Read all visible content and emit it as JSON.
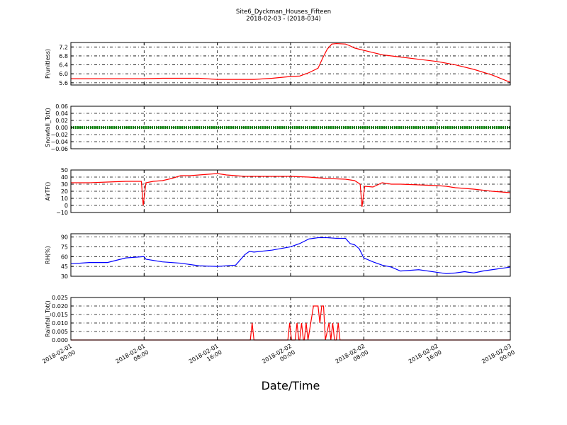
{
  "chart_data": {
    "type": "line",
    "title": "Site6_Dyckman_Houses_Fifteen",
    "subtitle": "2018-02-03 - (2018-034)",
    "xlabel": "Date/Time",
    "x_ticks": [
      {
        "hour": 0,
        "line1": "2018-02-01",
        "line2": "00:00"
      },
      {
        "hour": 8,
        "line1": "2018-02-01",
        "line2": "08:00"
      },
      {
        "hour": 16,
        "line1": "2018-02-01",
        "line2": "16:00"
      },
      {
        "hour": 24,
        "line1": "2018-02-02",
        "line2": "00:00"
      },
      {
        "hour": 32,
        "line1": "2018-02-02",
        "line2": "08:00"
      },
      {
        "hour": 40,
        "line1": "2018-02-02",
        "line2": "16:00"
      },
      {
        "hour": 48,
        "line1": "2018-02-03",
        "line2": "00:00"
      }
    ],
    "xlim": [
      0,
      48
    ],
    "grid": true,
    "panels": [
      {
        "ylabel": "P(unitless)",
        "color": "#ff0000",
        "ylim": [
          5.5,
          7.4
        ],
        "yticks": [
          "5.6",
          "6.0",
          "6.4",
          "6.8",
          "7.2"
        ],
        "x": [
          0,
          4,
          8,
          10,
          14,
          16,
          18,
          20,
          22,
          24,
          25,
          26,
          27,
          27.5,
          28,
          28.5,
          29,
          30,
          30.5,
          31,
          32,
          33,
          34,
          36,
          38,
          40,
          42,
          44,
          46,
          48
        ],
        "y": [
          5.78,
          5.78,
          5.78,
          5.8,
          5.8,
          5.75,
          5.75,
          5.75,
          5.8,
          5.88,
          5.9,
          6.05,
          6.25,
          6.7,
          7.1,
          7.33,
          7.35,
          7.33,
          7.25,
          7.15,
          7.05,
          6.95,
          6.85,
          6.75,
          6.65,
          6.55,
          6.4,
          6.2,
          5.95,
          5.62
        ]
      },
      {
        "ylabel": "Snowfall_Tot()",
        "color": "#008000",
        "ylim": [
          -0.06,
          0.06
        ],
        "yticks": [
          "−0.06",
          "−0.04",
          "−0.02",
          "0.00",
          "0.02",
          "0.04",
          "0.06"
        ],
        "x": [
          0,
          48
        ],
        "y": [
          0,
          0
        ]
      },
      {
        "ylabel": "AirTF()",
        "color": "#ff0000",
        "ylim": [
          -10,
          50
        ],
        "yticks": [
          "−10",
          "0",
          "10",
          "20",
          "30",
          "40",
          "50"
        ],
        "x": [
          0,
          2,
          4,
          6,
          7.7,
          7.9,
          8.2,
          9,
          10,
          11,
          12,
          13,
          14,
          15,
          16,
          16.5,
          17,
          18,
          19,
          20,
          22,
          24,
          26,
          28,
          30,
          31,
          31.6,
          31.8,
          32.1,
          33,
          34,
          35,
          36,
          38,
          40,
          41,
          42,
          44,
          46,
          48
        ],
        "y": [
          32,
          32,
          33,
          34,
          34,
          0,
          32,
          34,
          35,
          38,
          42,
          42,
          43,
          44,
          45,
          44,
          43,
          42,
          41,
          41,
          41,
          41,
          40,
          38,
          37,
          35,
          30,
          -2,
          27,
          26,
          32,
          30,
          30,
          29,
          28,
          27,
          25,
          23,
          20,
          18
        ]
      },
      {
        "ylabel": "RH(%)",
        "color": "#0000ff",
        "ylim": [
          30,
          95
        ],
        "yticks": [
          "30",
          "45",
          "60",
          "75",
          "90"
        ],
        "x": [
          0,
          2,
          4,
          6,
          8,
          8.2,
          10,
          12,
          14,
          16,
          18,
          19,
          19.5,
          20,
          22,
          24,
          25,
          26,
          27,
          28,
          29,
          30,
          30.5,
          31,
          31.5,
          32,
          33,
          34,
          35,
          36,
          38,
          40,
          41,
          42,
          43,
          44,
          45,
          46,
          47,
          48
        ],
        "y": [
          49,
          51,
          51,
          58,
          60,
          56,
          52,
          50,
          46,
          45,
          47,
          63,
          68,
          67,
          70,
          75,
          80,
          87,
          89,
          89,
          88,
          88,
          80,
          78,
          72,
          58,
          52,
          47,
          44,
          38,
          40,
          36,
          34,
          35,
          37,
          35,
          38,
          40,
          42,
          44
        ]
      },
      {
        "ylabel": "Rainfall_Tot()",
        "color": "#ff0000",
        "ylim": [
          0,
          0.025
        ],
        "yticks": [
          "0.000",
          "0.005",
          "0.010",
          "0.015",
          "0.020",
          "0.025"
        ],
        "x": [
          0,
          19.6,
          19.8,
          20,
          23.7,
          23.9,
          24.1,
          24.5,
          24.7,
          24.9,
          25,
          25.2,
          25.4,
          25.5,
          25.7,
          25.9,
          26.2,
          26.5,
          26.8,
          27,
          27.2,
          27.4,
          27.6,
          27.8,
          28.2,
          28.4,
          28.6,
          28.8,
          29,
          29.2,
          29.4,
          29.6,
          29.8,
          30,
          48
        ],
        "y": [
          0,
          0,
          0.01,
          0,
          0,
          0.01,
          0,
          0,
          0.01,
          0,
          0,
          0.01,
          0,
          0,
          0.01,
          0,
          0.01,
          0.02,
          0.02,
          0.02,
          0.01,
          0.02,
          0.02,
          0,
          0.01,
          0,
          0.01,
          0,
          0,
          0.01,
          0,
          0,
          0,
          0,
          0
        ]
      }
    ]
  }
}
